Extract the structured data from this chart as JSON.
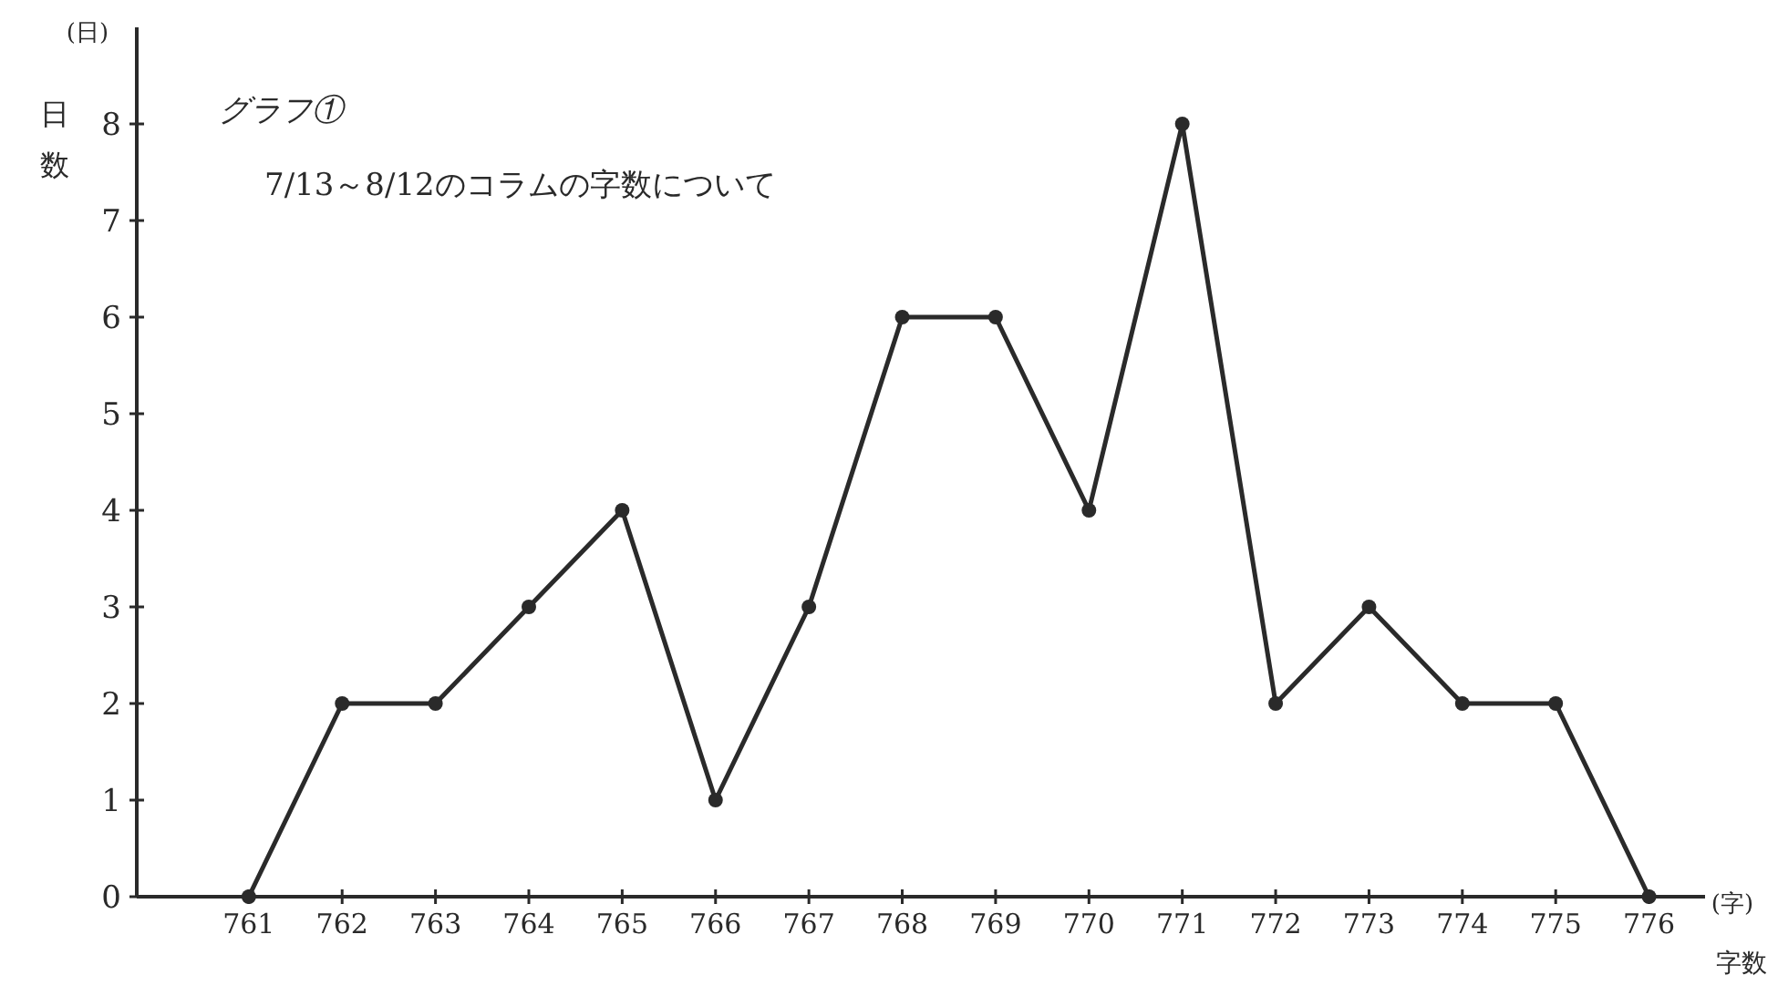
{
  "chart_data": {
    "type": "line",
    "title": "グラフ①",
    "subtitle": "7/13～8/12のコラムの字数について",
    "ylabel": "日数",
    "xlabel": "字数",
    "annotations": [
      "(日)",
      "(字)"
    ],
    "x": [
      761,
      762,
      763,
      764,
      765,
      766,
      767,
      768,
      769,
      770,
      771,
      772,
      773,
      774,
      775,
      776
    ],
    "series": [
      {
        "color": "#2a2a2a",
        "values": [
          0,
          2,
          2,
          3,
          4,
          1,
          3,
          6,
          6,
          4,
          8,
          2,
          3,
          2,
          2,
          0
        ]
      }
    ],
    "xlim": [
      759.8,
      776.6
    ],
    "ylim": [
      0,
      9
    ],
    "xticks": [
      761,
      762,
      763,
      764,
      765,
      766,
      767,
      768,
      769,
      770,
      771,
      772,
      773,
      774,
      775,
      776
    ],
    "yticks": [
      0,
      1,
      2,
      3,
      4,
      5,
      6,
      7,
      8
    ],
    "marker": "circle",
    "line_style": "solid",
    "grid": false
  }
}
